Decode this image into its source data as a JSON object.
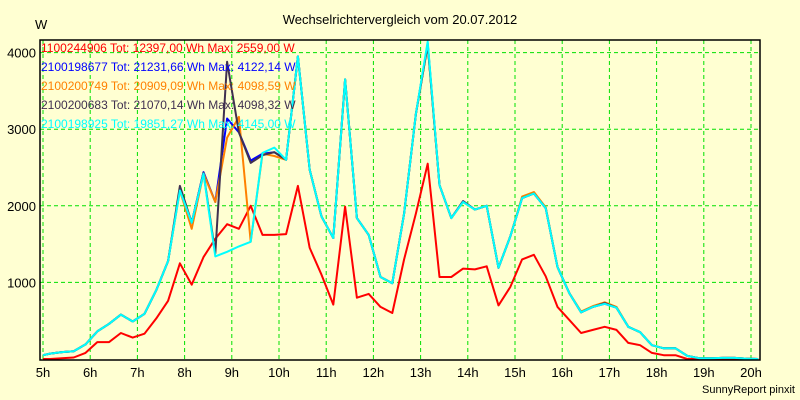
{
  "chart_data": {
    "type": "line",
    "title": "Wechselrichtervergleich vom 20.07.2012",
    "ylabel": "W",
    "xlabel": "",
    "footer": "SunnyReport pinxit",
    "ylim": [
      0,
      4000
    ],
    "xlim": [
      5,
      20
    ],
    "grid": true,
    "legend_placement": "top-left",
    "yticks": [
      {
        "v": 1000,
        "label": "1000"
      },
      {
        "v": 2000,
        "label": "2000"
      },
      {
        "v": 3000,
        "label": "3000"
      },
      {
        "v": 4000,
        "label": "4000"
      }
    ],
    "xticks": [
      {
        "v": 5,
        "label": "5h"
      },
      {
        "v": 6,
        "label": "6h"
      },
      {
        "v": 7,
        "label": "7h"
      },
      {
        "v": 8,
        "label": "8h"
      },
      {
        "v": 9,
        "label": "9h"
      },
      {
        "v": 10,
        "label": "10h"
      },
      {
        "v": 11,
        "label": "11h"
      },
      {
        "v": 12,
        "label": "12h"
      },
      {
        "v": 13,
        "label": "13h"
      },
      {
        "v": 14,
        "label": "14h"
      },
      {
        "v": 15,
        "label": "15h"
      },
      {
        "v": 16,
        "label": "16h"
      },
      {
        "v": 17,
        "label": "17h"
      },
      {
        "v": 18,
        "label": "18h"
      },
      {
        "v": 19,
        "label": "19h"
      },
      {
        "v": 20,
        "label": "20h"
      }
    ],
    "x": [
      5.0,
      5.15,
      5.4,
      5.65,
      5.9,
      6.15,
      6.4,
      6.65,
      6.9,
      7.15,
      7.4,
      7.65,
      7.9,
      8.15,
      8.4,
      8.65,
      8.9,
      9.15,
      9.4,
      9.65,
      9.9,
      10.15,
      10.4,
      10.65,
      10.9,
      11.15,
      11.4,
      11.65,
      11.9,
      12.15,
      12.4,
      12.65,
      12.9,
      13.15,
      13.4,
      13.65,
      13.9,
      14.15,
      14.4,
      14.65,
      14.9,
      15.15,
      15.4,
      15.65,
      15.9,
      16.15,
      16.4,
      16.65,
      16.9,
      17.15,
      17.4,
      17.65,
      17.9,
      18.15,
      18.4,
      18.65,
      18.9,
      19.15,
      19.4,
      19.65,
      19.9,
      20.15
    ],
    "series": [
      {
        "name": "1100244906",
        "legend": "1100244906 Tot: 12397,00 Wh Max: 2559,00 W",
        "color": "#ff0000",
        "values": [
          0,
          0,
          10,
          20,
          80,
          220,
          220,
          340,
          280,
          330,
          530,
          760,
          1250,
          970,
          1330,
          1570,
          1760,
          1700,
          2000,
          1620,
          1620,
          1630,
          2260,
          1450,
          1100,
          710,
          1990,
          800,
          850,
          680,
          600,
          1300,
          1900,
          2550,
          1070,
          1070,
          1180,
          1170,
          1210,
          700,
          940,
          1300,
          1360,
          1080,
          680,
          510,
          340,
          380,
          420,
          380,
          210,
          180,
          80,
          50,
          50,
          0,
          0,
          0,
          0,
          0,
          0,
          0
        ]
      },
      {
        "name": "2100198677",
        "legend": "2100198677 Tot: 21231,66 Wh Max: 4122,14 W",
        "color": "#0000ff",
        "values": [
          50,
          70,
          90,
          100,
          190,
          360,
          460,
          580,
          490,
          590,
          900,
          1280,
          2220,
          1780,
          2440,
          2050,
          3140,
          2960,
          2590,
          2680,
          2700,
          2600,
          3950,
          2470,
          1860,
          1580,
          3650,
          1840,
          1620,
          1070,
          990,
          1900,
          3200,
          4120,
          2270,
          1840,
          2060,
          1950,
          2000,
          1190,
          1600,
          2100,
          2160,
          1970,
          1200,
          860,
          610,
          680,
          720,
          670,
          420,
          350,
          180,
          140,
          140,
          40,
          10,
          10,
          15,
          15,
          5,
          0
        ]
      },
      {
        "name": "2100200749",
        "legend": "2100200749 Tot: 20909,09 Wh Max: 4098,59 W",
        "color": "#ff8000",
        "values": [
          50,
          70,
          90,
          100,
          190,
          360,
          460,
          580,
          490,
          590,
          900,
          1280,
          2200,
          1700,
          2420,
          2050,
          2890,
          3160,
          1530,
          2680,
          2650,
          2600,
          3950,
          2470,
          1860,
          1580,
          3650,
          1840,
          1620,
          1070,
          990,
          1900,
          3200,
          4100,
          2270,
          1840,
          2050,
          1950,
          2000,
          1190,
          1600,
          2120,
          2180,
          1980,
          1200,
          860,
          620,
          690,
          740,
          680,
          420,
          350,
          180,
          140,
          140,
          40,
          10,
          10,
          15,
          15,
          5,
          0
        ]
      },
      {
        "name": "2100200683",
        "legend": "2100200683 Tot: 21070,14 Wh Max: 4098,32 W",
        "color": "#403050",
        "values": [
          50,
          70,
          90,
          100,
          190,
          360,
          460,
          580,
          490,
          590,
          900,
          1280,
          2260,
          1780,
          2430,
          1380,
          3880,
          2960,
          2560,
          2660,
          2700,
          2600,
          3950,
          2470,
          1860,
          1580,
          3650,
          1840,
          1620,
          1070,
          990,
          1900,
          3200,
          4100,
          2270,
          1840,
          2060,
          1950,
          2000,
          1190,
          1600,
          2100,
          2160,
          1970,
          1200,
          860,
          610,
          680,
          730,
          670,
          420,
          350,
          180,
          140,
          140,
          40,
          10,
          10,
          15,
          15,
          5,
          0
        ]
      },
      {
        "name": "2100198925",
        "legend": "2100198925 Tot: 19851,27 Wh Max: 4145,00 W",
        "color": "#00ffff",
        "values": [
          50,
          70,
          90,
          100,
          190,
          360,
          460,
          580,
          490,
          590,
          900,
          1280,
          2200,
          1780,
          2420,
          1340,
          1400,
          1470,
          1530,
          2690,
          2760,
          2600,
          3950,
          2470,
          1860,
          1580,
          3650,
          1840,
          1620,
          1070,
          990,
          1900,
          3200,
          4145,
          2270,
          1840,
          2050,
          1950,
          2000,
          1190,
          1600,
          2100,
          2160,
          1970,
          1200,
          860,
          610,
          680,
          720,
          670,
          420,
          350,
          180,
          140,
          140,
          40,
          10,
          10,
          15,
          15,
          5,
          0
        ]
      }
    ]
  }
}
